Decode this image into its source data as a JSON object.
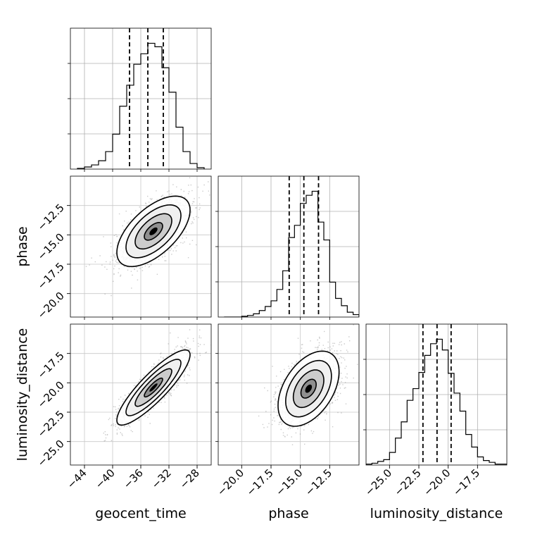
{
  "chart_data": {
    "type": "corner",
    "parameters": [
      "geocent_time",
      "phase",
      "luminosity_distance"
    ],
    "axis_labels": [
      "geocent_time",
      "phase",
      "luminosity_distance"
    ],
    "ranges": [
      [
        -46,
        -26
      ],
      [
        -22,
        -10
      ],
      [
        -27,
        -15
      ]
    ],
    "ticks": {
      "geocent_time": [
        -44,
        -40,
        -36,
        -32,
        -28
      ],
      "phase": [
        -20.0,
        -17.5,
        -15.0,
        -12.5
      ],
      "luminosity_distance": [
        -25.0,
        -22.5,
        -20.0,
        -17.5
      ]
    },
    "quantiles": {
      "geocent_time": [
        -37.6,
        -35.0,
        -32.8
      ],
      "phase": [
        -15.95,
        -14.7,
        -13.45
      ],
      "luminosity_distance": [
        -22.15,
        -20.95,
        -19.75
      ]
    },
    "histograms": {
      "geocent_time": {
        "x": [
          -44.5,
          -43.5,
          -42.5,
          -41.5,
          -40.5,
          -39.5,
          -38.5,
          -37.5,
          -36.5,
          -35.5,
          -34.5,
          -33.5,
          -32.5,
          -31.5,
          -30.5,
          -29.5,
          -28.5,
          -27.5
        ],
        "counts": [
          1,
          3,
          6,
          12,
          25,
          50,
          90,
          120,
          150,
          165,
          180,
          175,
          145,
          110,
          60,
          25,
          8,
          2
        ]
      },
      "phase": {
        "x": [
          -21.25,
          -20.75,
          -20.25,
          -19.75,
          -19.25,
          -18.75,
          -18.25,
          -17.75,
          -17.25,
          -16.75,
          -16.25,
          -15.75,
          -15.25,
          -14.75,
          -14.25,
          -13.75,
          -13.25,
          -12.75,
          -12.25,
          -11.75,
          -11.25,
          -10.75,
          -10.25
        ],
        "counts": [
          0,
          0,
          0,
          1,
          2,
          4,
          8,
          13,
          20,
          34,
          57,
          98,
          113,
          140,
          150,
          155,
          117,
          95,
          43,
          23,
          14,
          6,
          3
        ]
      },
      "luminosity_distance": {
        "x": [
          -26.75,
          -26.25,
          -25.75,
          -25.25,
          -24.75,
          -24.25,
          -23.75,
          -23.25,
          -22.75,
          -22.25,
          -21.75,
          -21.25,
          -20.75,
          -20.25,
          -19.75,
          -19.25,
          -18.75,
          -18.25,
          -17.75,
          -17.25,
          -16.75,
          -16.25,
          -15.75,
          -15.25
        ],
        "counts": [
          1,
          2,
          4,
          6,
          14,
          30,
          48,
          72,
          85,
          103,
          122,
          135,
          140,
          128,
          102,
          80,
          60,
          34,
          20,
          9,
          5,
          3,
          1,
          1
        ]
      }
    },
    "pairs": [
      {
        "x": "geocent_time",
        "y": "phase",
        "mean": [
          -34.2,
          -14.7
        ],
        "sd": [
          2.6,
          1.5
        ],
        "corr": 0.6
      },
      {
        "x": "geocent_time",
        "y": "luminosity_distance",
        "mean": [
          -34.2,
          -20.4
        ],
        "sd": [
          2.6,
          1.6
        ],
        "corr": 0.87
      },
      {
        "x": "phase",
        "y": "luminosity_distance",
        "mean": [
          -14.3,
          -20.5
        ],
        "sd": [
          1.3,
          1.6
        ],
        "corr": 0.45
      }
    ],
    "contour_levels_sigma": [
      0.5,
      1.0,
      1.5,
      2.0
    ],
    "grid": true
  }
}
